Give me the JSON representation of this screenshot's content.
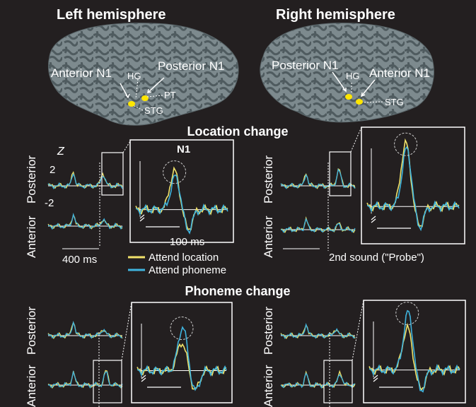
{
  "hemispheres": {
    "left": {
      "title": "Left hemisphere",
      "labels": {
        "anterior": "Anterior N1",
        "posterior": "Posterior N1",
        "hg": "HG",
        "pt": "PT",
        "stg": "STG"
      }
    },
    "right": {
      "title": "Right hemisphere",
      "labels": {
        "posterior": "Posterior N1",
        "hg": "HG",
        "anterior": "Anterior N1",
        "stg": "STG"
      }
    }
  },
  "sections": {
    "location": "Location change",
    "phoneme": "Phoneme change"
  },
  "axis": {
    "z_label": "Z",
    "tick_pos": "2",
    "tick_neg": "-2",
    "row_anterior": "Anterior",
    "row_posterior": "Posterior",
    "scale_400": "400 ms",
    "scale_100": "100 ms",
    "n1_label": "N1",
    "probe_label": "2nd sound (\"Probe\")"
  },
  "legend": {
    "items": [
      {
        "label": "Attend location",
        "color": "#f0e26a"
      },
      {
        "label": "Attend phoneme",
        "color": "#3fb4de"
      }
    ]
  },
  "colors": {
    "background": "#231f20",
    "brain_dark": "#4f5b5f",
    "brain_light": "#7d8a8e",
    "yellow": "#f0e26a",
    "blue": "#3fb4de",
    "white": "#ffffff"
  }
}
